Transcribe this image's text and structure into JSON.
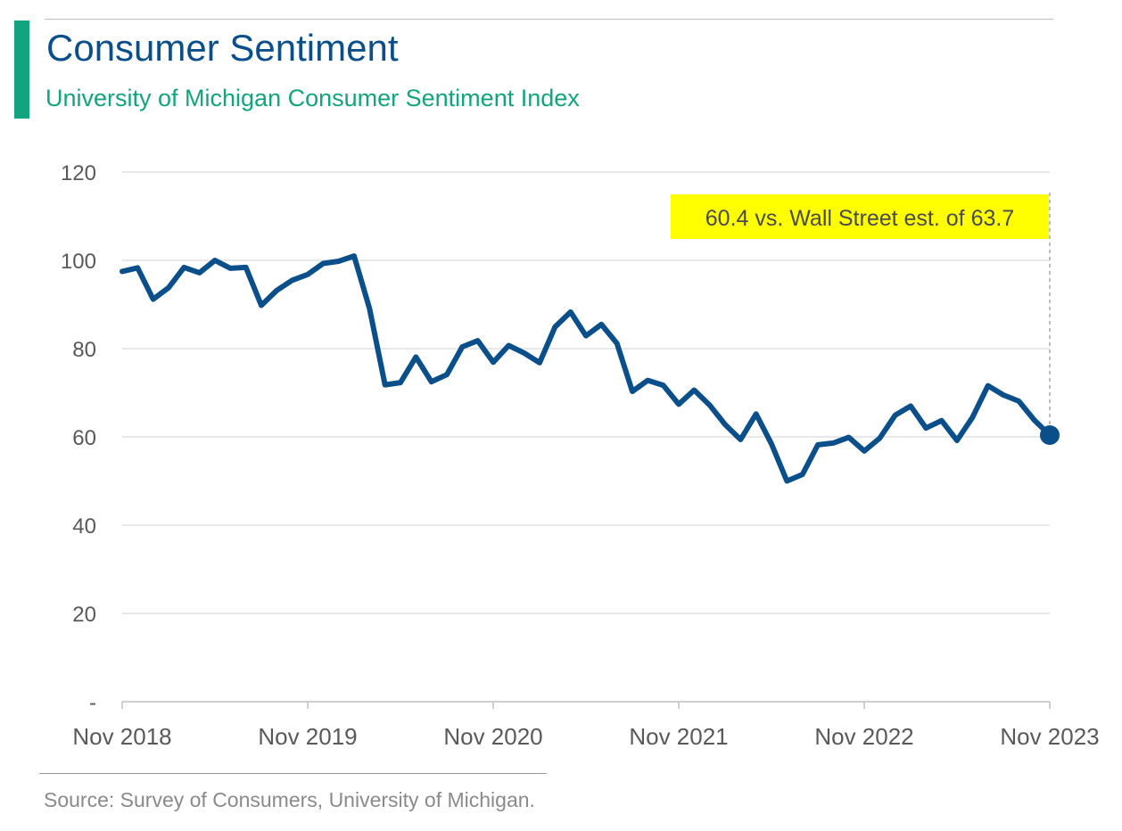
{
  "header": {
    "title": "Consumer Sentiment",
    "subtitle": "University of Michigan Consumer Sentiment Index"
  },
  "footer": {
    "source": "Source: Survey of Consumers, University of Michigan."
  },
  "colors": {
    "accent": "#14a37f",
    "line": "#0b4f8a",
    "annotation_bg": "#ffff00",
    "grid": "#d9d9d9"
  },
  "chart_data": {
    "type": "line",
    "title": "Consumer Sentiment",
    "subtitle": "University of Michigan Consumer Sentiment Index",
    "xlabel": "",
    "ylabel": "",
    "ylim": [
      0,
      120
    ],
    "y_ticks": [
      0,
      20,
      40,
      60,
      80,
      100,
      120
    ],
    "y_tick_labels": [
      "-",
      "20",
      "40",
      "60",
      "80",
      "100",
      "120"
    ],
    "x_tick_labels": [
      "Nov 2018",
      "Nov 2019",
      "Nov 2020",
      "Nov 2021",
      "Nov 2022",
      "Nov 2023"
    ],
    "grid": true,
    "legend": "none",
    "x": [
      "2018-11",
      "2018-12",
      "2019-01",
      "2019-02",
      "2019-03",
      "2019-04",
      "2019-05",
      "2019-06",
      "2019-07",
      "2019-08",
      "2019-09",
      "2019-10",
      "2019-11",
      "2019-12",
      "2020-01",
      "2020-02",
      "2020-03",
      "2020-04",
      "2020-05",
      "2020-06",
      "2020-07",
      "2020-08",
      "2020-09",
      "2020-10",
      "2020-11",
      "2020-12",
      "2021-01",
      "2021-02",
      "2021-03",
      "2021-04",
      "2021-05",
      "2021-06",
      "2021-07",
      "2021-08",
      "2021-09",
      "2021-10",
      "2021-11",
      "2021-12",
      "2022-01",
      "2022-02",
      "2022-03",
      "2022-04",
      "2022-05",
      "2022-06",
      "2022-07",
      "2022-08",
      "2022-09",
      "2022-10",
      "2022-11",
      "2022-12",
      "2023-01",
      "2023-02",
      "2023-03",
      "2023-04",
      "2023-05",
      "2023-06",
      "2023-07",
      "2023-08",
      "2023-09",
      "2023-10",
      "2023-11"
    ],
    "series": [
      {
        "values": [
          97.5,
          98.3,
          91.2,
          93.8,
          98.4,
          97.2,
          100.0,
          98.2,
          98.4,
          89.8,
          93.2,
          95.5,
          96.8,
          99.3,
          99.8,
          101.0,
          89.1,
          71.8,
          72.3,
          78.1,
          72.5,
          74.1,
          80.4,
          81.8,
          76.9,
          80.7,
          79.0,
          76.8,
          84.9,
          88.3,
          82.9,
          85.5,
          81.2,
          70.3,
          72.8,
          71.7,
          67.4,
          70.6,
          67.2,
          62.8,
          59.4,
          65.2,
          58.4,
          50.0,
          51.5,
          58.2,
          58.6,
          59.9,
          56.8,
          59.7,
          64.9,
          67.0,
          62.0,
          63.7,
          59.2,
          64.4,
          71.6,
          69.5,
          68.1,
          63.8,
          60.4
        ]
      }
    ],
    "annotation": {
      "text": "60.4 vs. Wall Street est. of 63.7",
      "x": "2023-11",
      "value": 60.4
    }
  }
}
